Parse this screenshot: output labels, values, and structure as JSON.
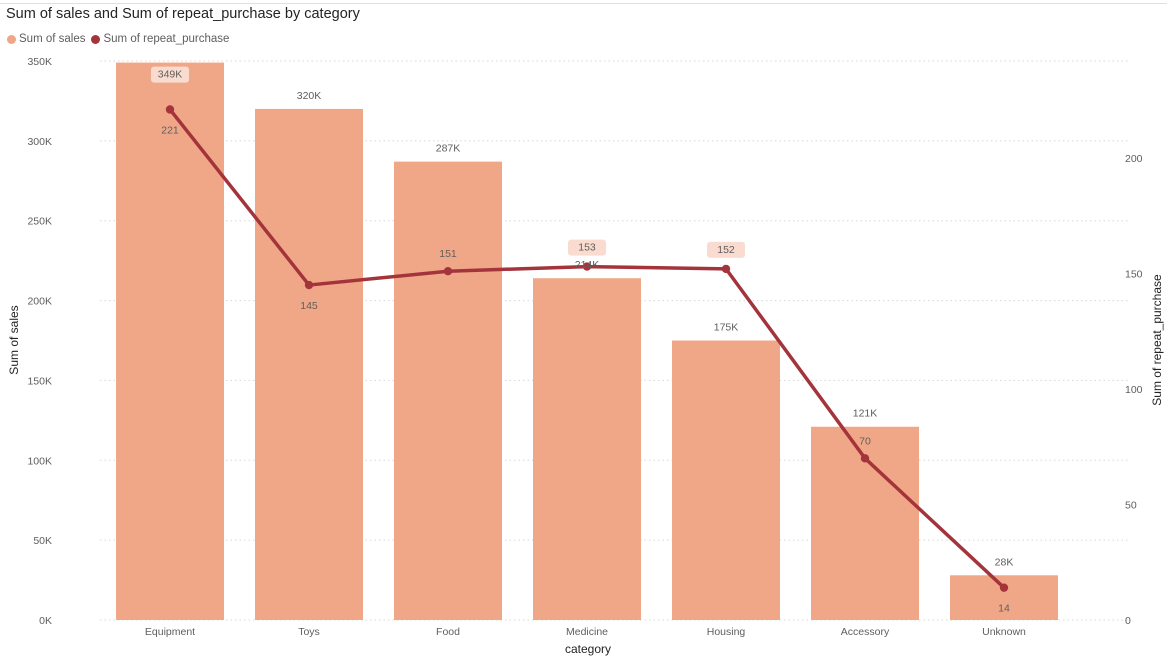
{
  "chart_data": {
    "type": "bar",
    "title": "Sum of sales and Sum of repeat_purchase by category",
    "legend_position": "top-left",
    "categories": [
      "Equipment",
      "Toys",
      "Food",
      "Medicine",
      "Housing",
      "Accessory",
      "Unknown"
    ],
    "series": [
      {
        "name": "Sum of sales",
        "type": "bar",
        "axis": "left",
        "color": "#F0A787",
        "values": [
          349000,
          320000,
          287000,
          214000,
          175000,
          121000,
          28000
        ],
        "labels": [
          "349K",
          "320K",
          "287K",
          "214K",
          "175K",
          "121K",
          "28K"
        ]
      },
      {
        "name": "Sum of repeat_purchase",
        "type": "line",
        "axis": "right",
        "color": "#A4343C",
        "values": [
          221,
          145,
          151,
          153,
          152,
          70,
          14
        ],
        "labels": [
          "221",
          "145",
          "151",
          "153",
          "152",
          "70",
          "14"
        ]
      }
    ],
    "xlabel": "category",
    "ylabel": "Sum of sales",
    "y2label": "Sum of repeat_purchase",
    "ylim": [
      0,
      350000
    ],
    "y2lim": [
      0,
      242
    ],
    "yticks": [
      {
        "value": 0,
        "label": "0K"
      },
      {
        "value": 50000,
        "label": "50K"
      },
      {
        "value": 100000,
        "label": "100K"
      },
      {
        "value": 150000,
        "label": "150K"
      },
      {
        "value": 200000,
        "label": "200K"
      },
      {
        "value": 250000,
        "label": "250K"
      },
      {
        "value": 300000,
        "label": "300K"
      },
      {
        "value": 350000,
        "label": "350K"
      }
    ],
    "y2ticks": [
      {
        "value": 0,
        "label": "0"
      },
      {
        "value": 50,
        "label": "50"
      },
      {
        "value": 100,
        "label": "100"
      },
      {
        "value": 150,
        "label": "150"
      },
      {
        "value": 200,
        "label": "200"
      }
    ],
    "grid": true
  }
}
